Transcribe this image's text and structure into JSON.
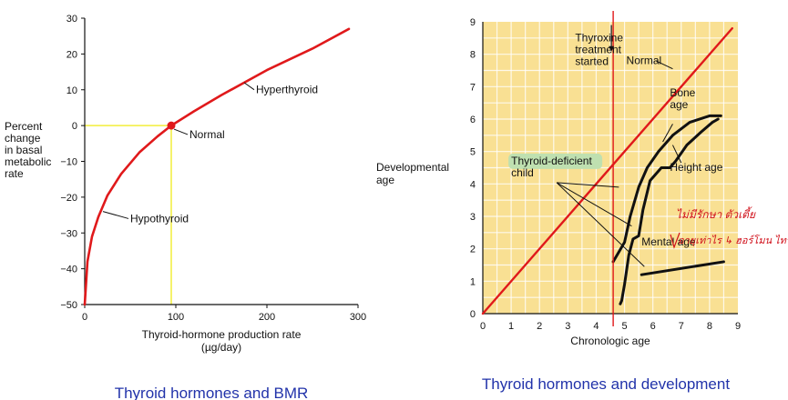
{
  "captions": {
    "left": "Thyroid hormones and BMR",
    "right": "Thyroid hormones and development"
  },
  "chart_data": [
    {
      "type": "line",
      "xlabel": [
        "Thyroid-hormone production rate",
        "(µg/day)"
      ],
      "ylabel": [
        "Percent",
        "change",
        "in basal",
        "metabolic",
        "rate"
      ],
      "xlim": [
        0,
        300
      ],
      "ylim": [
        -50,
        30
      ],
      "x_ticks": [
        0,
        100,
        200,
        300
      ],
      "y_ticks": [
        30,
        20,
        10,
        0,
        -10,
        -20,
        -30,
        -40,
        -50
      ],
      "y_tick_labels": [
        "30",
        "20",
        "10",
        "0",
        "−10",
        "−20",
        "−30",
        "−40",
        "−50"
      ],
      "grid": false,
      "series": [
        {
          "color": "#e0191b",
          "x": [
            0,
            3,
            8,
            15,
            25,
            40,
            60,
            80,
            95,
            120,
            150,
            200,
            250,
            290
          ],
          "y": [
            -50,
            -38,
            -31,
            -25.5,
            -19.5,
            -13.5,
            -7.5,
            -3,
            0,
            4,
            8.5,
            15.5,
            21.5,
            27
          ]
        }
      ],
      "reference_lines": {
        "color": "#f2ee3a",
        "point": {
          "x": 95,
          "y": 0
        }
      },
      "annotations": [
        {
          "text": "Hyperthyroid",
          "x": 188,
          "y": 9,
          "target": {
            "x": 175,
            "y": 12
          }
        },
        {
          "text": "Normal",
          "x": 115,
          "y": -3.5,
          "target": {
            "x": 98,
            "y": -1
          }
        },
        {
          "text": "Hypothyroid",
          "x": 50,
          "y": -27,
          "target": {
            "x": 20,
            "y": -24
          }
        }
      ],
      "marker": {
        "x": 95,
        "y": 0,
        "color": "#e0191b"
      }
    },
    {
      "type": "line",
      "xlabel": "Chronologic age",
      "ylabel": [
        "Developmental",
        "age"
      ],
      "xlim": [
        0,
        9
      ],
      "ylim": [
        0,
        9
      ],
      "x_ticks": [
        0,
        1,
        2,
        3,
        4,
        5,
        6,
        7,
        8,
        9
      ],
      "y_ticks": [
        0,
        1,
        2,
        3,
        4,
        5,
        6,
        7,
        8,
        9
      ],
      "grid": true,
      "colors": {
        "background": "#f9e093",
        "grid": "#ffffff",
        "normal": "#e0191b",
        "treatment": "#e0191b",
        "series": "#111111",
        "label_box": "#bfe0b0",
        "handwriting": "#d0101a"
      },
      "treatment_started_at": 4.6,
      "series": [
        {
          "name": "Normal",
          "color": "#e0191b",
          "x": [
            0,
            8.8
          ],
          "y": [
            0,
            8.8
          ]
        },
        {
          "name": "Bone age",
          "color": "#111111",
          "x": [
            4.6,
            5.0,
            5.2,
            5.5,
            5.8,
            6.2,
            6.7,
            7.3,
            8.0,
            8.4
          ],
          "y": [
            1.6,
            2.2,
            3.0,
            3.9,
            4.5,
            5.0,
            5.5,
            5.9,
            6.1,
            6.1
          ]
        },
        {
          "name": "Height age",
          "color": "#111111",
          "x": [
            4.85,
            4.9,
            5.0,
            5.15,
            5.3,
            5.5,
            5.65,
            5.9,
            6.3,
            6.6,
            6.8,
            7.2,
            7.7,
            8.1,
            8.3
          ],
          "y": [
            0.3,
            0.4,
            0.9,
            1.8,
            2.3,
            2.4,
            3.2,
            4.1,
            4.5,
            4.5,
            4.7,
            5.2,
            5.6,
            5.9,
            6.0
          ]
        },
        {
          "name": "Mental age",
          "color": "#111111",
          "x": [
            5.6,
            8.5
          ],
          "y": [
            1.2,
            1.6
          ]
        }
      ],
      "annotations": [
        {
          "text": [
            "Thyroxine",
            "treatment",
            "started"
          ],
          "x": 3.0,
          "y": 8.4
        },
        {
          "text": "Normal",
          "x": 5.0,
          "y": 7.7
        },
        {
          "text": [
            "Bone",
            "age"
          ],
          "x": 6.6,
          "y": 6.7
        },
        {
          "text": "Height age",
          "x": 6.6,
          "y": 4.4
        },
        {
          "text": "Mental age",
          "x": 5.6,
          "y": 2.1
        },
        {
          "text": [
            "Thyroid-deficient",
            "child"
          ],
          "x": 1.0,
          "y": 4.6
        }
      ],
      "pointer_targets": [
        {
          "x": 4.8,
          "y": 3.9
        },
        {
          "x": 5.25,
          "y": 2.7
        },
        {
          "x": 5.7,
          "y": 1.45
        }
      ],
      "handwritten_note": [
        "ไม่มีรักษา ตัวเตี้ย",
        "อายุเท่าไร ↳ ฮอร์โมน ไทรอยด์"
      ]
    }
  ]
}
